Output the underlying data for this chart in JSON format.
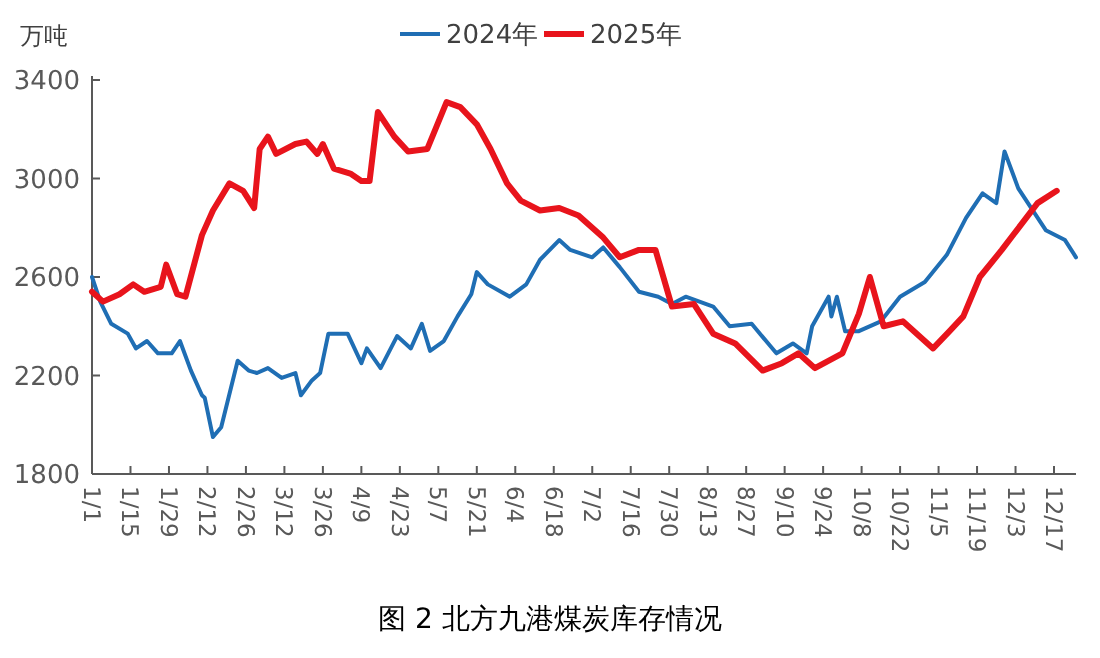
{
  "chart_data": {
    "type": "line",
    "title": "图 2 北方九港煤炭库存情况",
    "ylabel": "万吨",
    "legend": "top",
    "line_style": "solid",
    "marker": "none",
    "grid": false,
    "xlim": [
      "--01-01",
      "--12-25"
    ],
    "xticks": [
      {
        "value": "--01-01",
        "label": "1/1"
      },
      {
        "value": "--01-15",
        "label": "1/15"
      },
      {
        "value": "--01-29",
        "label": "1/29"
      },
      {
        "value": "--02-12",
        "label": "2/12"
      },
      {
        "value": "--02-26",
        "label": "2/26"
      },
      {
        "value": "--03-12",
        "label": "3/12"
      },
      {
        "value": "--03-26",
        "label": "3/26"
      },
      {
        "value": "--04-09",
        "label": "4/9"
      },
      {
        "value": "--04-23",
        "label": "4/23"
      },
      {
        "value": "--05-07",
        "label": "5/7"
      },
      {
        "value": "--05-21",
        "label": "5/21"
      },
      {
        "value": "--06-04",
        "label": "6/4"
      },
      {
        "value": "--06-18",
        "label": "6/18"
      },
      {
        "value": "--07-02",
        "label": "7/2"
      },
      {
        "value": "--07-16",
        "label": "7/16"
      },
      {
        "value": "--07-30",
        "label": "7/30"
      },
      {
        "value": "--08-13",
        "label": "8/13"
      },
      {
        "value": "--08-27",
        "label": "8/27"
      },
      {
        "value": "--09-10",
        "label": "9/10"
      },
      {
        "value": "--09-24",
        "label": "9/24"
      },
      {
        "value": "--10-08",
        "label": "10/8"
      },
      {
        "value": "--10-22",
        "label": "10/22"
      },
      {
        "value": "--11-05",
        "label": "11/5"
      },
      {
        "value": "--11-19",
        "label": "11/19"
      },
      {
        "value": "--12-03",
        "label": "12/3"
      },
      {
        "value": "--12-17",
        "label": "12/17"
      }
    ],
    "ylim": [
      1800,
      3400
    ],
    "yticks": [
      1800,
      2200,
      2600,
      3000,
      3400
    ],
    "series": [
      {
        "name": "2024年",
        "color": "#1f6eb4",
        "x": [
          "--01-01",
          "--01-04",
          "--01-08",
          "--01-14",
          "--01-17",
          "--01-21",
          "--01-25",
          "--01-30",
          "--02-02",
          "--02-06",
          "--02-10",
          "--02-11",
          "--02-14",
          "--02-17",
          "--02-23",
          "--02-27",
          "--03-02",
          "--03-06",
          "--03-11",
          "--03-16",
          "--03-18",
          "--03-22",
          "--03-25",
          "--03-28",
          "--03-31",
          "--04-04",
          "--04-09",
          "--04-11",
          "--04-16",
          "--04-22",
          "--04-27",
          "--05-01",
          "--05-04",
          "--05-09",
          "--05-14",
          "--05-19",
          "--05-21",
          "--05-25",
          "--06-02",
          "--06-08",
          "--06-13",
          "--06-20",
          "--06-24",
          "--07-02",
          "--07-06",
          "--07-12",
          "--07-19",
          "--07-26",
          "--07-31",
          "--08-05",
          "--08-15",
          "--08-21",
          "--08-29",
          "--09-07",
          "--09-13",
          "--09-18",
          "--09-20",
          "--09-26",
          "--09-27",
          "--09-29",
          "--10-02",
          "--10-07",
          "--10-15",
          "--10-22",
          "--10-31",
          "--11-08",
          "--11-15",
          "--11-21",
          "--11-26",
          "--11-29",
          "--12-04",
          "--12-14",
          "--12-21",
          "--12-25"
        ],
        "values": [
          2600,
          2500,
          2410,
          2370,
          2310,
          2340,
          2290,
          2290,
          2340,
          2220,
          2120,
          2110,
          1950,
          1990,
          2260,
          2220,
          2210,
          2230,
          2190,
          2210,
          2120,
          2180,
          2210,
          2370,
          2370,
          2370,
          2250,
          2310,
          2230,
          2360,
          2310,
          2410,
          2300,
          2340,
          2440,
          2530,
          2620,
          2570,
          2520,
          2570,
          2670,
          2750,
          2710,
          2680,
          2720,
          2640,
          2540,
          2520,
          2490,
          2520,
          2480,
          2400,
          2410,
          2290,
          2330,
          2290,
          2400,
          2520,
          2440,
          2520,
          2380,
          2380,
          2420,
          2520,
          2580,
          2690,
          2840,
          2940,
          2900,
          3110,
          2960,
          2790,
          2750,
          2680
        ]
      },
      {
        "name": "2025年",
        "color": "#e8141c",
        "x": [
          "--01-01",
          "--01-05",
          "--01-11",
          "--01-16",
          "--01-20",
          "--01-26",
          "--01-28",
          "--02-01",
          "--02-04",
          "--02-10",
          "--02-14",
          "--02-20",
          "--02-25",
          "--03-01",
          "--03-03",
          "--03-06",
          "--03-09",
          "--03-16",
          "--03-20",
          "--03-24",
          "--03-26",
          "--03-30",
          "--04-05",
          "--04-09",
          "--04-12",
          "--04-15",
          "--04-21",
          "--04-26",
          "--05-03",
          "--05-10",
          "--05-15",
          "--05-21",
          "--05-26",
          "--06-01",
          "--06-06",
          "--06-13",
          "--06-20",
          "--06-27",
          "--07-06",
          "--07-12",
          "--07-19",
          "--07-25",
          "--07-31",
          "--08-08",
          "--08-15",
          "--08-23",
          "--09-02",
          "--09-09",
          "--09-15",
          "--09-21",
          "--10-01",
          "--10-07",
          "--10-11",
          "--10-16",
          "--10-23",
          "--11-03",
          "--11-09",
          "--11-14",
          "--11-20",
          "--11-28",
          "--12-11",
          "--12-18"
        ],
        "values": [
          2540,
          2500,
          2530,
          2570,
          2540,
          2560,
          2650,
          2530,
          2520,
          2770,
          2870,
          2980,
          2950,
          2880,
          3120,
          3170,
          3100,
          3140,
          3150,
          3100,
          3140,
          3040,
          3020,
          2990,
          2990,
          3270,
          3170,
          3110,
          3120,
          3310,
          3290,
          3220,
          3120,
          2980,
          2910,
          2870,
          2880,
          2850,
          2760,
          2680,
          2710,
          2710,
          2480,
          2490,
          2370,
          2330,
          2220,
          2250,
          2290,
          2230,
          2290,
          2450,
          2600,
          2400,
          2420,
          2310,
          2380,
          2440,
          2600,
          2710,
          2900,
          2950
        ]
      }
    ]
  }
}
